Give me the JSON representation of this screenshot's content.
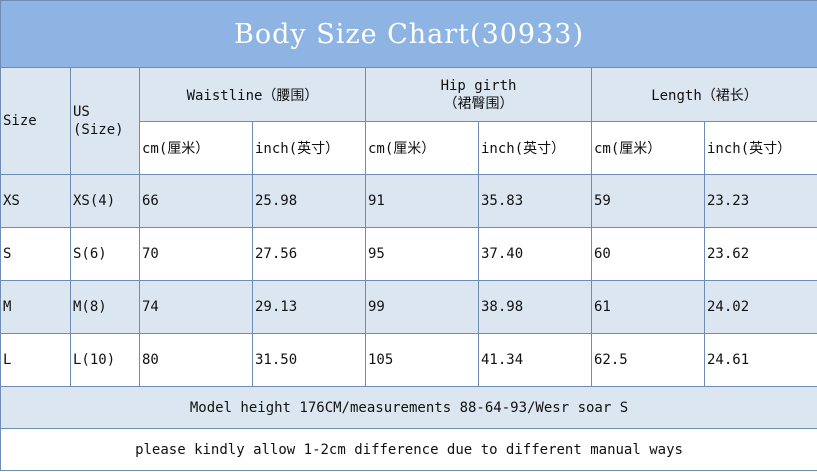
{
  "title": "Body Size Chart(30933)",
  "header": {
    "size": "Size",
    "us_line1": "US",
    "us_line2": "(Size)",
    "waist": "Waistline（腰围）",
    "hip_line1": "Hip girth",
    "hip_line2": "（裙臀围）",
    "length": "Length（裙长）",
    "cm": "cm(厘米）",
    "inch": "inch(英寸）"
  },
  "rows": [
    {
      "size": "XS",
      "us": "XS(4)",
      "waist_cm": "66",
      "waist_in": "25.98",
      "hip_cm": "91",
      "hip_in": "35.83",
      "len_cm": "59",
      "len_in": "23.23"
    },
    {
      "size": "S",
      "us": "S(6)",
      "waist_cm": "70",
      "waist_in": "27.56",
      "hip_cm": "95",
      "hip_in": "37.40",
      "len_cm": "60",
      "len_in": "23.62"
    },
    {
      "size": "M",
      "us": "M(8)",
      "waist_cm": "74",
      "waist_in": "29.13",
      "hip_cm": "99",
      "hip_in": "38.98",
      "len_cm": "61",
      "len_in": "24.02"
    },
    {
      "size": "L",
      "us": "L(10)",
      "waist_cm": "80",
      "waist_in": "31.50",
      "hip_cm": "105",
      "hip_in": "41.34",
      "len_cm": "62.5",
      "len_in": "24.61"
    }
  ],
  "model_note": "Model height 176CM/measurements 88-64-93/Wesr soar S",
  "difference_note": "please kindly allow 1-2cm difference due to different manual ways",
  "colors": {
    "title_bg": "#8db4e2",
    "header_bg": "#dce6f1",
    "border": "#6d8db5"
  }
}
